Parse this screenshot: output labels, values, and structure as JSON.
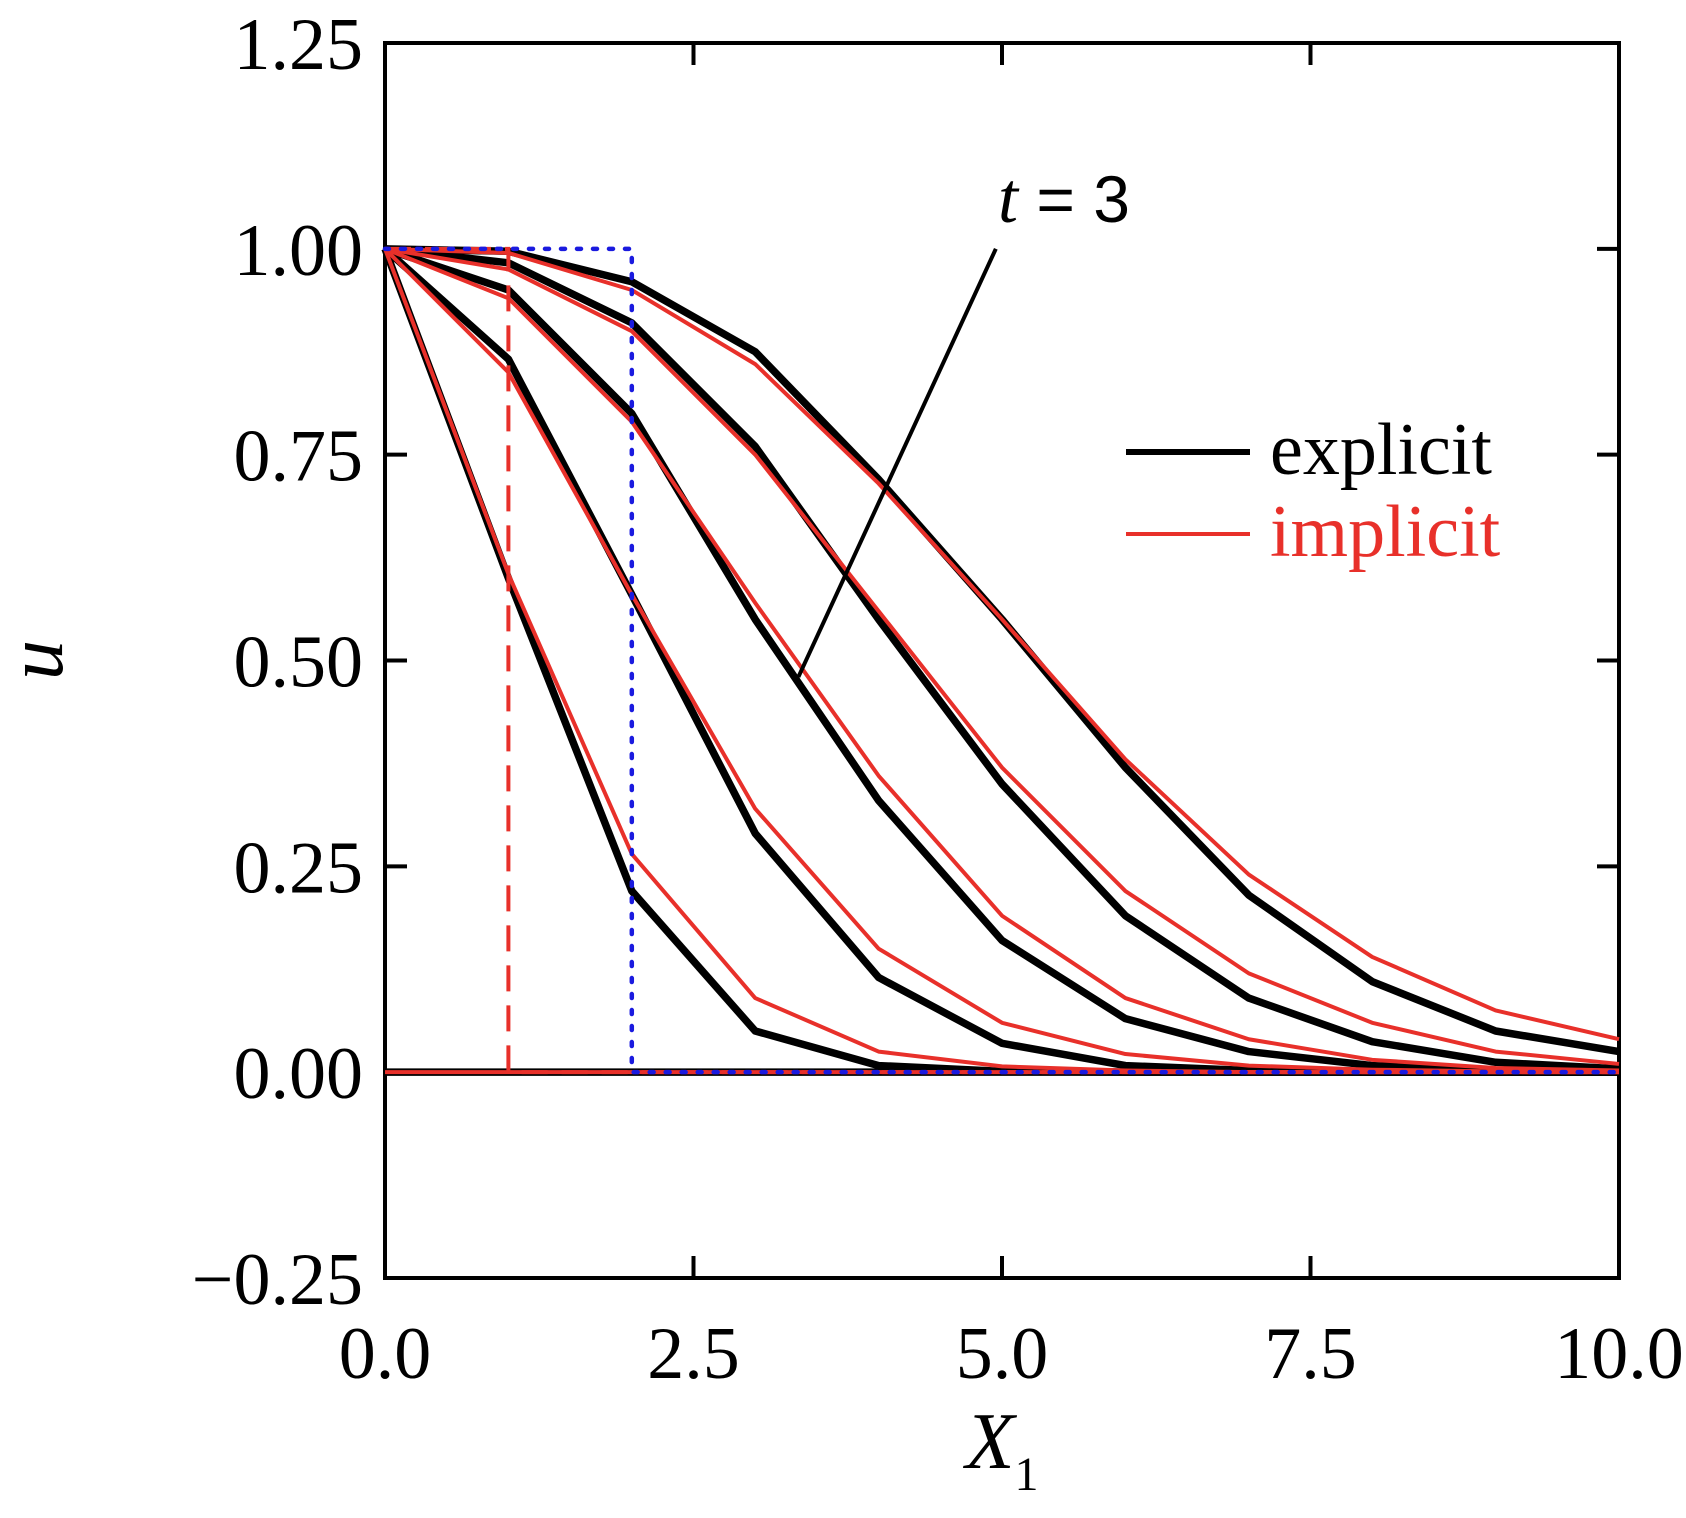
{
  "chart_data": {
    "type": "line",
    "xlabel": "X",
    "xlabel_subscript": "1",
    "ylabel": "u",
    "xlim": [
      0,
      10
    ],
    "ylim": [
      -0.25,
      1.25
    ],
    "x_ticks": [
      0,
      2.5,
      5,
      7.5,
      10
    ],
    "x_tick_labels": [
      "0.0",
      "2.5",
      "5.0",
      "7.5",
      "10.0"
    ],
    "y_ticks": [
      -0.25,
      0,
      0.25,
      0.5,
      0.75,
      1.0,
      1.25
    ],
    "y_tick_labels": [
      "−0.25",
      "0.00",
      "0.25",
      "0.50",
      "0.75",
      "1.00",
      "1.25"
    ],
    "grid": false,
    "legend": {
      "placement": "right",
      "entries": [
        {
          "label": "explicit",
          "color": "#000000"
        },
        {
          "label": "implicit",
          "color": "#e8302a"
        }
      ]
    },
    "annotation": {
      "text_italic": "t",
      "text_rest": " = 3",
      "arrow_from": [
        3.35,
        0.48
      ],
      "arrow_to": [
        4.95,
        1.0
      ]
    },
    "colors": {
      "explicit": "#000000",
      "implicit": "#e8302a",
      "dashed": "#e8302a",
      "dotted": "#1a1adf"
    },
    "x": [
      0,
      1,
      2,
      3,
      4,
      5,
      6,
      7,
      8,
      9,
      10
    ],
    "explicit_series": [
      {
        "values": [
          0,
          0,
          0,
          0,
          0,
          0,
          0,
          0,
          0,
          0,
          0
        ]
      },
      {
        "values": [
          1.0,
          0.6,
          0.22,
          0.05,
          0.008,
          0.001,
          0,
          0,
          0,
          0,
          0
        ]
      },
      {
        "values": [
          1.0,
          0.866,
          0.58,
          0.29,
          0.115,
          0.035,
          0.008,
          0.002,
          0,
          0,
          0
        ]
      },
      {
        "values": [
          1.0,
          0.95,
          0.8,
          0.55,
          0.33,
          0.16,
          0.065,
          0.025,
          0.008,
          0.002,
          0.001
        ]
      },
      {
        "values": [
          1.0,
          0.983,
          0.91,
          0.76,
          0.55,
          0.35,
          0.19,
          0.09,
          0.037,
          0.012,
          0.004
        ]
      },
      {
        "values": [
          1.0,
          0.997,
          0.96,
          0.875,
          0.72,
          0.55,
          0.37,
          0.215,
          0.11,
          0.05,
          0.025
        ]
      }
    ],
    "implicit_series": [
      {
        "values": [
          0,
          0,
          0,
          0,
          0,
          0,
          0,
          0,
          0,
          0,
          0
        ]
      },
      {
        "values": [
          1.0,
          0.605,
          0.265,
          0.09,
          0.025,
          0.007,
          0.002,
          0,
          0,
          0,
          0
        ]
      },
      {
        "values": [
          1.0,
          0.85,
          0.58,
          0.32,
          0.15,
          0.06,
          0.022,
          0.008,
          0.003,
          0.001,
          0
        ]
      },
      {
        "values": [
          1.0,
          0.94,
          0.79,
          0.57,
          0.36,
          0.19,
          0.09,
          0.04,
          0.015,
          0.005,
          0.002
        ]
      },
      {
        "values": [
          1.0,
          0.975,
          0.9,
          0.75,
          0.56,
          0.37,
          0.22,
          0.12,
          0.06,
          0.025,
          0.01
        ]
      },
      {
        "values": [
          1.0,
          0.995,
          0.95,
          0.86,
          0.715,
          0.55,
          0.38,
          0.24,
          0.14,
          0.075,
          0.04
        ]
      }
    ],
    "dashed_profile": {
      "x": [
        0,
        1,
        1,
        10
      ],
      "values": [
        1.0,
        1.0,
        0,
        0
      ]
    },
    "dotted_profile": {
      "x": [
        0,
        2,
        2,
        10
      ],
      "values": [
        1.0,
        1.0,
        0,
        0
      ]
    }
  }
}
